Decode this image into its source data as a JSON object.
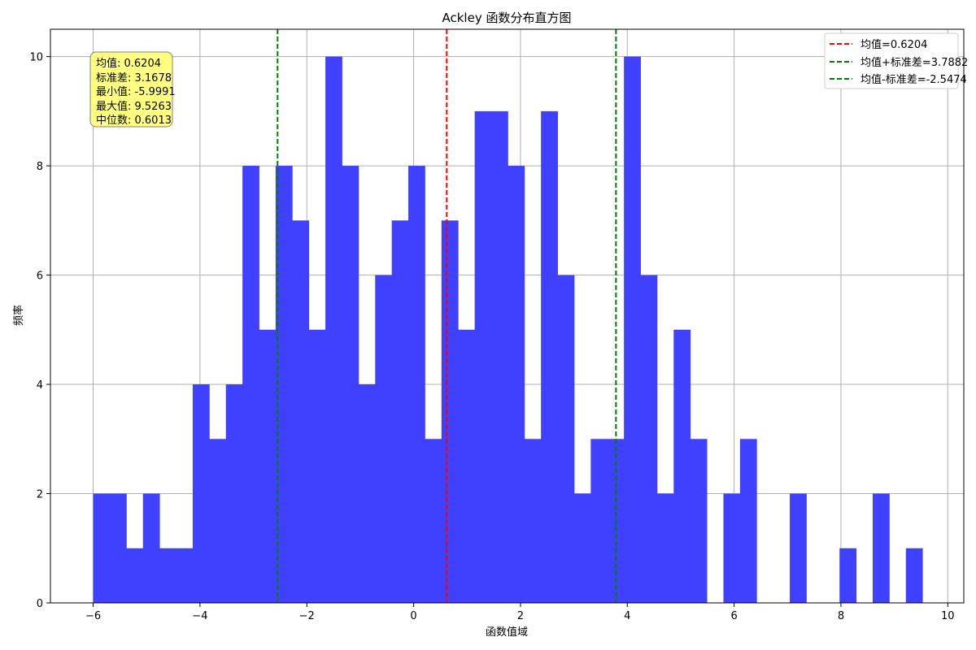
{
  "chart_data": {
    "type": "bar",
    "title": "Ackley 函数分布直方图",
    "xlabel": "函数值域",
    "ylabel": "频率",
    "xlim": [
      -6.8,
      10.3
    ],
    "ylim": [
      0,
      10.5
    ],
    "xticks": [
      -6,
      -4,
      -2,
      0,
      2,
      4,
      6,
      8,
      10
    ],
    "yticks": [
      0,
      2,
      4,
      6,
      8,
      10
    ],
    "grid": true,
    "legend_placement": "top-right",
    "bar_color": "#4040ff",
    "bins": {
      "start": -5.9991,
      "end": 9.5263,
      "counts": [
        2,
        2,
        1,
        2,
        1,
        1,
        4,
        3,
        4,
        8,
        5,
        8,
        7,
        5,
        10,
        8,
        4,
        6,
        7,
        8,
        3,
        7,
        5,
        9,
        9,
        8,
        3,
        9,
        6,
        2,
        3,
        3,
        10,
        6,
        2,
        5,
        3,
        0,
        2,
        3,
        0,
        0,
        2,
        0,
        0,
        1,
        0,
        2,
        0,
        1
      ]
    },
    "reference_lines": [
      {
        "x": 0.6204,
        "color": "#ff0000",
        "label": "均值=0.6204"
      },
      {
        "x": 3.7882,
        "color": "#008000",
        "label": "均值+标准差=3.7882"
      },
      {
        "x": -2.5474,
        "color": "#008000",
        "label": "均值-标准差=-2.5474"
      }
    ],
    "stats_box": {
      "lines": [
        "均值: 0.6204",
        "标准差: 3.1678",
        "最小值: -5.9991",
        "最大值: 9.5263",
        "中位数: 0.6013"
      ],
      "background": "#ffff80"
    }
  }
}
